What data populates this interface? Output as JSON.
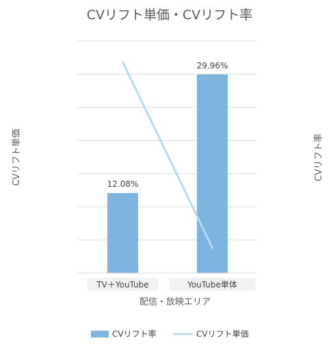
{
  "chart_data": {
    "type": "bar",
    "title": "CVリフト単価・CVリフト率",
    "xlabel": "配信・放映エリア",
    "ylabel_left": "CVリフト単価",
    "ylabel_right": "CVリフト率",
    "categories": [
      "TV＋YouTube",
      "YouTube単体"
    ],
    "grid": true,
    "legend_position": "bottom",
    "series": [
      {
        "name": "CVリフト率",
        "type": "bar",
        "axis": "right",
        "values": [
          12.08,
          29.96
        ],
        "labels": [
          "12.08%",
          "29.96%"
        ],
        "color": "#7eb5e0"
      },
      {
        "name": "CVリフト単価",
        "type": "line",
        "axis": "left",
        "values": [
          1.0,
          0.12
        ],
        "color": "#b3dcf2"
      }
    ],
    "ylim_right": [
      0,
      35
    ],
    "ylim_left": [
      0,
      1.1
    ]
  }
}
